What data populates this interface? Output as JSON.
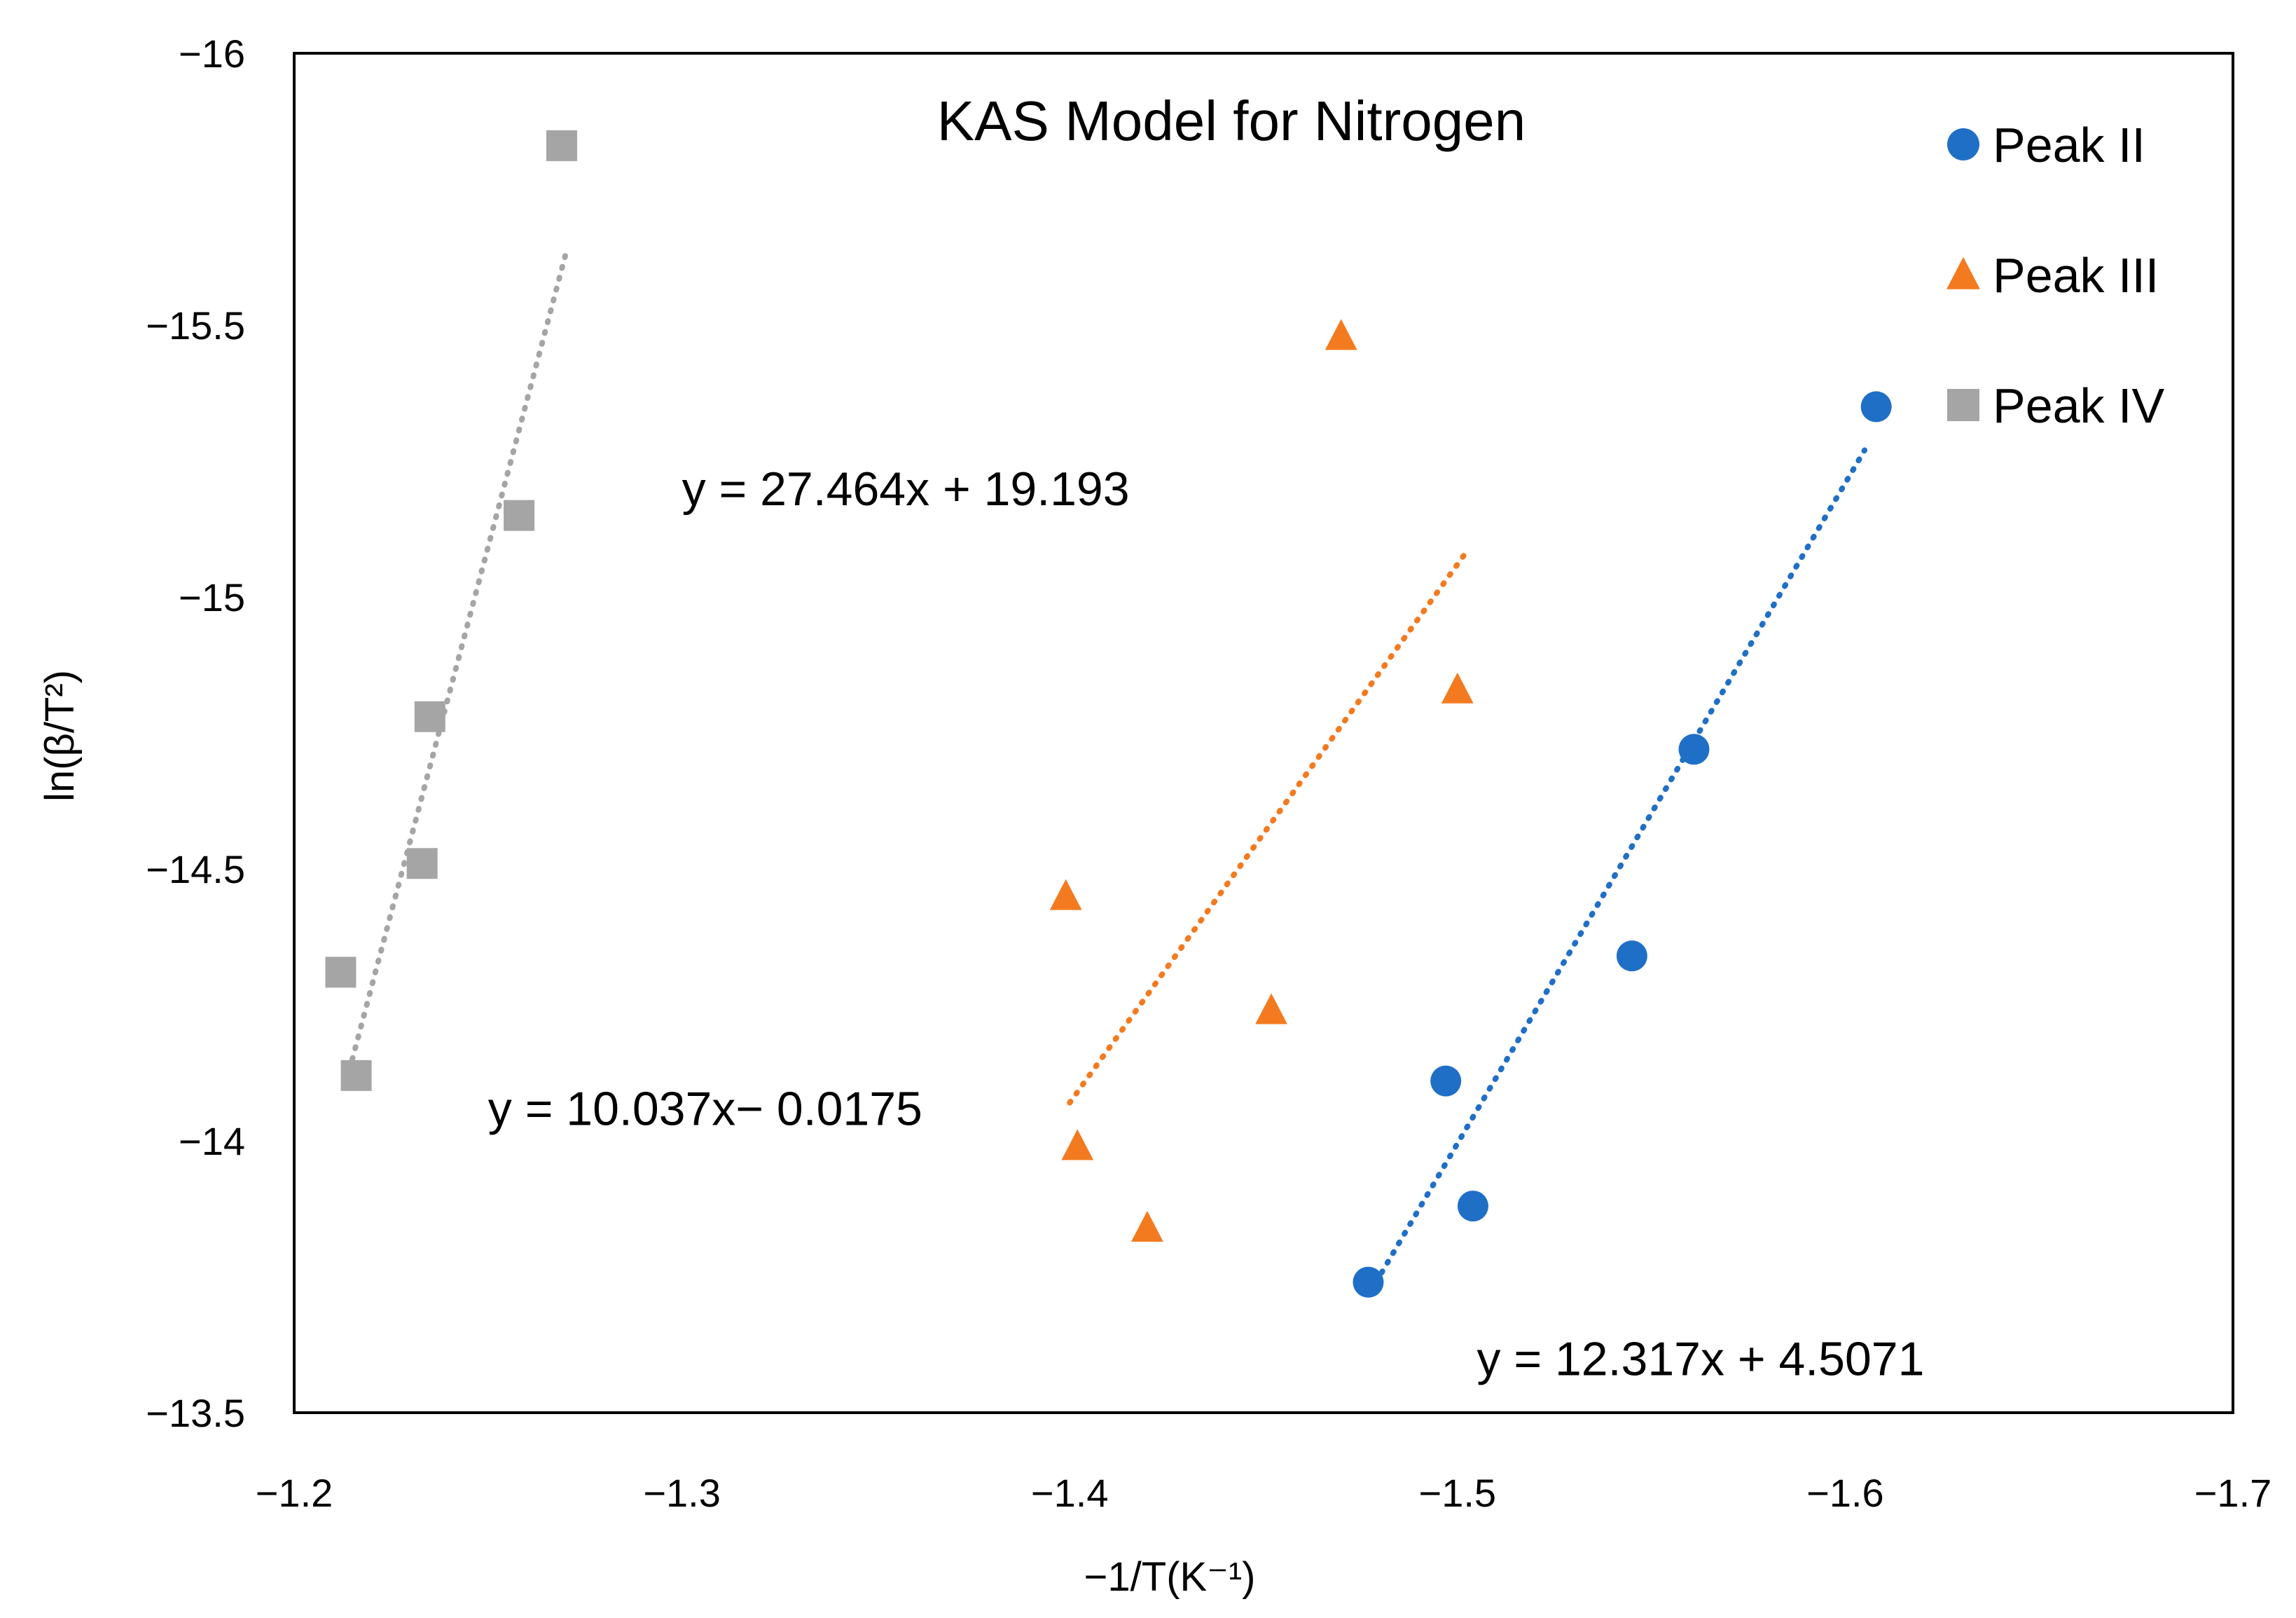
{
  "chart_data": {
    "type": "scatter",
    "title": "KAS Model for Nitrogen",
    "xlabel": "−1/T(K⁻¹)",
    "ylabel": "ln(β/T²)",
    "xlim": [
      -1.2,
      -1.7
    ],
    "ylim": [
      -13.5,
      -16
    ],
    "x_reversed": true,
    "y_reversed": true,
    "grid": false,
    "legend_position": "top-right",
    "x_ticks": [
      {
        "value": -1.2,
        "label": "−1.2"
      },
      {
        "value": -1.3,
        "label": "−1.3"
      },
      {
        "value": -1.4,
        "label": "−1.4"
      },
      {
        "value": -1.5,
        "label": "−1.5"
      },
      {
        "value": -1.6,
        "label": "−1.6"
      },
      {
        "value": -1.7,
        "label": "−1.7"
      }
    ],
    "y_ticks": [
      {
        "value": -13.5,
        "label": "−13.5"
      },
      {
        "value": -14,
        "label": "−14"
      },
      {
        "value": -14.5,
        "label": "−14.5"
      },
      {
        "value": -15,
        "label": "−15"
      },
      {
        "value": -15.5,
        "label": "−15.5"
      },
      {
        "value": -16,
        "label": "−16"
      }
    ],
    "series": [
      {
        "name": "Peak II",
        "marker": "circle",
        "color": "#1f6fc6",
        "points": [
          {
            "x": -1.477,
            "y": -13.74
          },
          {
            "x": -1.497,
            "y": -14.11
          },
          {
            "x": -1.504,
            "y": -13.88
          },
          {
            "x": -1.545,
            "y": -14.34
          },
          {
            "x": -1.561,
            "y": -14.72
          },
          {
            "x": -1.608,
            "y": -15.35
          }
        ],
        "trendline": {
          "x_start": -1.479,
          "x_end": -1.605,
          "y_start": -13.74,
          "y_end": -15.27,
          "color": "#1f6fc6"
        }
      },
      {
        "name": "Peak III",
        "marker": "triangle",
        "color": "#f47a20",
        "points": [
          {
            "x": -1.399,
            "y": -14.45
          },
          {
            "x": -1.402,
            "y": -13.99
          },
          {
            "x": -1.42,
            "y": -13.84
          },
          {
            "x": -1.452,
            "y": -14.24
          },
          {
            "x": -1.47,
            "y": -15.48
          },
          {
            "x": -1.5,
            "y": -14.83
          }
        ],
        "trendline": {
          "x_start": -1.4,
          "x_end": -1.502,
          "y_start": -14.07,
          "y_end": -15.08,
          "color": "#f47a20"
        }
      },
      {
        "name": "Peak IV",
        "marker": "square",
        "color": "#a5a5a5",
        "points": [
          {
            "x": -1.212,
            "y": -14.31
          },
          {
            "x": -1.216,
            "y": -14.12
          },
          {
            "x": -1.233,
            "y": -14.51
          },
          {
            "x": -1.235,
            "y": -14.78
          },
          {
            "x": -1.258,
            "y": -15.15
          },
          {
            "x": -1.269,
            "y": -15.83
          }
        ],
        "trendline": {
          "x_start": -1.215,
          "x_end": -1.27,
          "y_start": -14.15,
          "y_end": -15.63,
          "color": "#a5a5a5"
        }
      }
    ],
    "annotations": [
      {
        "text": "y = 27.464x + 19.193",
        "x": -1.3,
        "y": -15.2
      },
      {
        "text": "y = 10.037x− 0.0175",
        "x": -1.25,
        "y": -14.06
      },
      {
        "text": "y = 12.317x + 4.5071",
        "x": -1.505,
        "y": -13.6
      }
    ]
  }
}
